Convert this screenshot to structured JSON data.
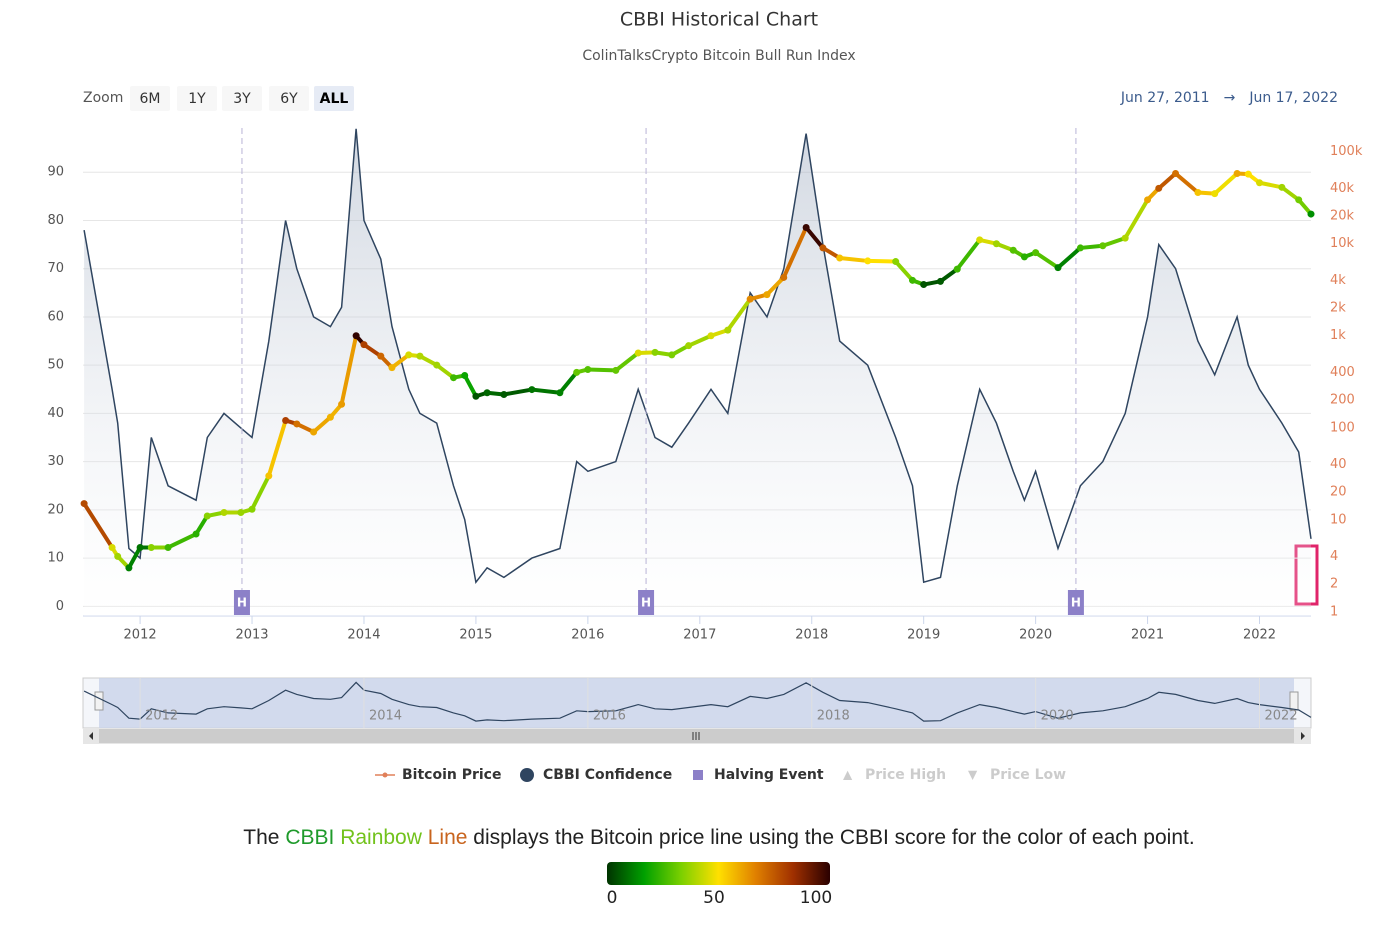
{
  "chart_data": {
    "type": "line",
    "title": "CBBI Historical Chart",
    "subtitle": "ColinTalksCrypto Bitcoin Bull Run Index",
    "zoom": {
      "label": "Zoom",
      "buttons": [
        "6M",
        "1Y",
        "3Y",
        "6Y",
        "ALL"
      ],
      "active": 4
    },
    "range": {
      "from": "Jun 27, 2011",
      "arrow": "→",
      "to": "Jun 17, 2022"
    },
    "x": [
      2011.5,
      2011.75,
      2011.8,
      2011.9,
      2012.0,
      2012.1,
      2012.25,
      2012.5,
      2012.6,
      2012.75,
      2012.9,
      2013.0,
      2013.15,
      2013.3,
      2013.4,
      2013.55,
      2013.7,
      2013.8,
      2013.93,
      2014.0,
      2014.15,
      2014.25,
      2014.4,
      2014.5,
      2014.65,
      2014.8,
      2014.9,
      2015.0,
      2015.1,
      2015.25,
      2015.5,
      2015.75,
      2015.9,
      2016.0,
      2016.25,
      2016.45,
      2016.6,
      2016.75,
      2016.9,
      2017.1,
      2017.25,
      2017.45,
      2017.6,
      2017.75,
      2017.95,
      2018.1,
      2018.25,
      2018.5,
      2018.75,
      2018.9,
      2019.0,
      2019.15,
      2019.3,
      2019.5,
      2019.65,
      2019.8,
      2019.9,
      2020.0,
      2020.2,
      2020.4,
      2020.6,
      2020.8,
      2021.0,
      2021.1,
      2021.25,
      2021.45,
      2021.6,
      2021.8,
      2021.9,
      2022.0,
      2022.2,
      2022.35,
      2022.46
    ],
    "series": [
      {
        "name": "Bitcoin Price",
        "axis": "y2",
        "color": "#e0805a",
        "values": [
          15,
          5,
          4,
          3,
          5,
          5,
          5,
          7,
          11,
          12,
          12,
          13,
          30,
          120,
          110,
          90,
          130,
          180,
          1000,
          800,
          600,
          450,
          620,
          600,
          480,
          350,
          370,
          220,
          240,
          230,
          260,
          240,
          400,
          430,
          420,
          650,
          660,
          620,
          780,
          1000,
          1150,
          2500,
          2800,
          4300,
          15000,
          9000,
          7000,
          6500,
          6400,
          4000,
          3600,
          3900,
          5300,
          11000,
          10000,
          8500,
          7200,
          8000,
          5500,
          9000,
          9500,
          11500,
          30000,
          40000,
          58000,
          36000,
          35000,
          58000,
          57000,
          46000,
          41000,
          30000,
          21000
        ]
      },
      {
        "name": "CBBI Confidence",
        "color": "#2f4560",
        "values": [
          78,
          45,
          38,
          12,
          10,
          35,
          25,
          22,
          35,
          40,
          37,
          35,
          55,
          80,
          70,
          60,
          58,
          62,
          99,
          80,
          72,
          58,
          45,
          40,
          38,
          25,
          18,
          5,
          8,
          6,
          10,
          12,
          30,
          28,
          30,
          45,
          35,
          33,
          38,
          45,
          40,
          65,
          60,
          70,
          98,
          75,
          55,
          50,
          35,
          25,
          5,
          6,
          25,
          45,
          38,
          28,
          22,
          28,
          12,
          25,
          30,
          40,
          60,
          75,
          70,
          55,
          48,
          60,
          50,
          45,
          38,
          32,
          14
        ]
      }
    ],
    "halving_events": {
      "name": "Halving Event",
      "label": "H",
      "color": "#8c80c8",
      "x": [
        2012.91,
        2016.52,
        2020.36
      ]
    },
    "legend_extra": [
      {
        "name": "Price High",
        "symbol": "▲"
      },
      {
        "name": "Price Low",
        "symbol": "▼"
      }
    ],
    "xlim": [
      2011.49,
      2022.46
    ],
    "xticks": [
      2012,
      2013,
      2014,
      2015,
      2016,
      2017,
      2018,
      2019,
      2020,
      2021,
      2022
    ],
    "ylim": [
      -2,
      100
    ],
    "yticks": [
      0,
      10,
      20,
      30,
      40,
      50,
      60,
      70,
      80,
      90
    ],
    "y2lim": [
      0.9,
      200000
    ],
    "y2log": true,
    "y2ticks": [
      1,
      2,
      4,
      10,
      20,
      40,
      100,
      200,
      400,
      {
        "value": 1000,
        "label": "1k"
      },
      {
        "value": 2000,
        "label": "2k"
      },
      {
        "value": 4000,
        "label": "4k"
      },
      {
        "value": 10000,
        "label": "10k"
      },
      {
        "value": 20000,
        "label": "20k"
      },
      {
        "value": 40000,
        "label": "40k"
      },
      {
        "value": 100000,
        "label": "100k"
      }
    ],
    "grid": true,
    "navigator_xticks": [
      2012,
      2014,
      2016,
      2018,
      2020,
      2022
    ],
    "footer": {
      "prefix": "The",
      "highlight": [
        "CBBI",
        "Rainbow",
        "Line"
      ],
      "suffix": "displays the Bitcoin price line using the CBBI score for the color of each point."
    },
    "color_scale": {
      "colors": [
        "#003300",
        "#00a000",
        "#7cd000",
        "#ffe000",
        "#e08000",
        "#a03000",
        "#2a0000"
      ],
      "ticks": [
        0,
        50,
        100
      ]
    }
  }
}
